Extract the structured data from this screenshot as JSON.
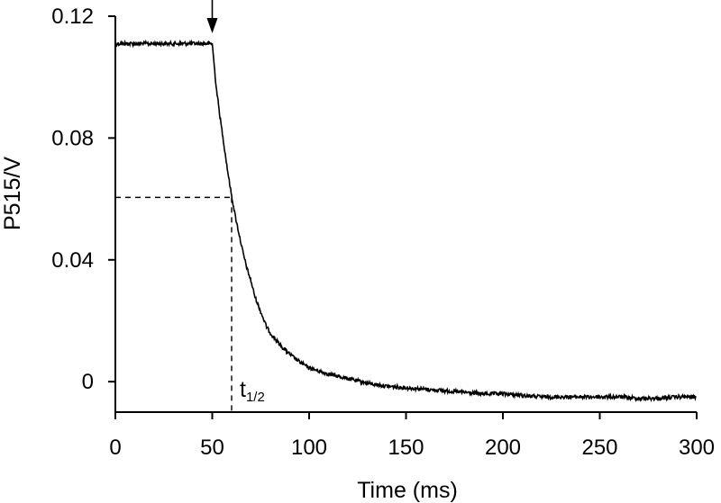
{
  "chart_data": {
    "type": "line",
    "title": "",
    "xlabel": "Time (ms)",
    "ylabel": "P515/V",
    "xlim": [
      0,
      300
    ],
    "ylim": [
      -0.01,
      0.12
    ],
    "xticks": [
      0,
      50,
      100,
      150,
      200,
      250,
      300
    ],
    "xtick_labels": [
      "0",
      "50",
      "100",
      "150",
      "200",
      "250",
      "300"
    ],
    "yticks": [
      0,
      0.04,
      0.08,
      0.12
    ],
    "ytick_labels": [
      "0",
      "0.04",
      "0.08",
      "0.12"
    ],
    "grid": false,
    "legend": "none",
    "series": [
      {
        "x": [
          0,
          10,
          20,
          30,
          40,
          50,
          52,
          54,
          56,
          58,
          60,
          62,
          64,
          66,
          68,
          70,
          72,
          75,
          78,
          80,
          85,
          90,
          95,
          100,
          110,
          120,
          130,
          140,
          150,
          160,
          170,
          180,
          190,
          200,
          210,
          220,
          230,
          240,
          250,
          260,
          270,
          280,
          290,
          300
        ],
        "y": [
          0.111,
          0.111,
          0.111,
          0.111,
          0.111,
          0.111,
          0.097,
          0.087,
          0.078,
          0.069,
          0.061,
          0.054,
          0.048,
          0.042,
          0.037,
          0.033,
          0.028,
          0.023,
          0.018,
          0.016,
          0.012,
          0.009,
          0.0065,
          0.0045,
          0.0025,
          0.001,
          -0.0005,
          -0.0015,
          -0.002,
          -0.0025,
          -0.003,
          -0.0035,
          -0.004,
          -0.004,
          -0.0045,
          -0.005,
          -0.005,
          -0.005,
          -0.005,
          -0.005,
          -0.0055,
          -0.0055,
          -0.005,
          -0.005
        ]
      }
    ],
    "annotations": {
      "arrow_x": 50,
      "half_time_label": "t",
      "half_time_subscript": "1/2",
      "half_point": {
        "x": 60,
        "y": 0.0605
      }
    }
  }
}
